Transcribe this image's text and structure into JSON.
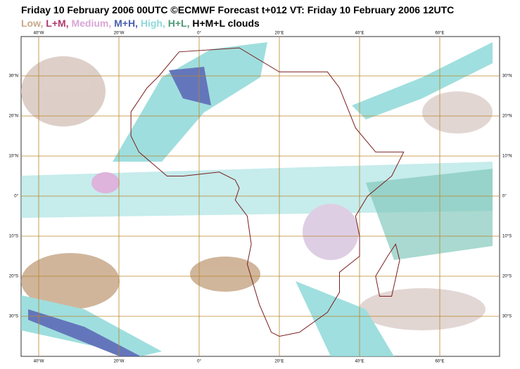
{
  "header": {
    "title": "Friday 10 February 2006 00UTC ©ECMWF Forecast t+012 VT: Friday 10 February 2006 12UTC"
  },
  "legend": [
    {
      "label": "Low,",
      "color": "#c8a98a"
    },
    {
      "label": "L+M,",
      "color": "#b03a6e"
    },
    {
      "label": "Medium,",
      "color": "#d9a6d6"
    },
    {
      "label": "M+H,",
      "color": "#4a5fb0"
    },
    {
      "label": "High,",
      "color": "#8fd9d9"
    },
    {
      "label": "H+L,",
      "color": "#4f9a78"
    },
    {
      "label": "H+M+L clouds",
      "color": "#000000"
    }
  ],
  "map": {
    "longitudes": [
      {
        "value": -40,
        "label": "40°W"
      },
      {
        "value": -20,
        "label": "20°W"
      },
      {
        "value": 0,
        "label": "0°"
      },
      {
        "value": 20,
        "label": "20°E"
      },
      {
        "value": 40,
        "label": "40°E"
      },
      {
        "value": 60,
        "label": "60°E"
      }
    ],
    "latitudes": [
      {
        "value": 30,
        "label": "30°N"
      },
      {
        "value": 20,
        "label": "20°N"
      },
      {
        "value": 10,
        "label": "10°N"
      },
      {
        "value": 0,
        "label": "0°"
      },
      {
        "value": -10,
        "label": "10°S"
      },
      {
        "value": -20,
        "label": "20°S"
      },
      {
        "value": -30,
        "label": "30°S"
      }
    ]
  }
}
